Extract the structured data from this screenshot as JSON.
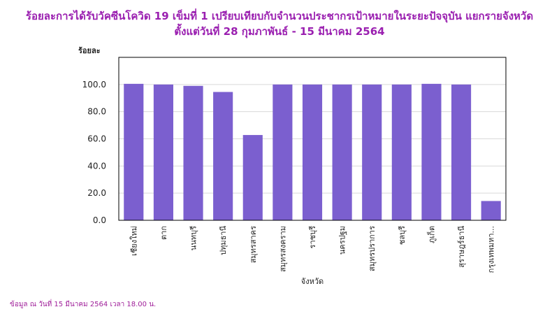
{
  "title_line1": "ร้อยละการได้รับวัคซีนโควิด 19 เข็มที่ 1 เปรียบเทียบกับจำนวนประชากรเป้าหมายในระยะปัจจุบัน แยกรายจังหวัด",
  "title_line2": "ตั้งแต่วันที่ 28 กุมภาพันธ์ - 15 มีนาคม 2564",
  "footnote": "ข้อมูล ณ วันที่ 15 มีนาคม 2564 เวลา 18.00 น.",
  "colors": {
    "bar": "#7b5fcf",
    "title": "#9a1fb0",
    "footnote": "#a0209a"
  },
  "chart_data": {
    "type": "bar",
    "unit_label": "ร้อยละ",
    "xlabel": "จังหวัด",
    "ylabel": "ร้อยละ",
    "ylim": [
      0,
      120
    ],
    "yticks": [
      "0.0",
      "20.0",
      "40.0",
      "60.0",
      "80.0",
      "100.0"
    ],
    "categories": [
      "เชียงใหม่",
      "ตาก",
      "นนทบุรี",
      "ปทุมธานี",
      "สมุทรสาคร",
      "สมุทรสงคราม",
      "ราชบุรี",
      "นครปฐม",
      "สมุทรปราการ",
      "ชลบุรี",
      "ภูเก็ต",
      "สุราษฎร์ธานี",
      "กรุงเทพมหา..."
    ],
    "values": [
      100.5,
      100.0,
      99.0,
      94.5,
      62.8,
      100.0,
      100.0,
      100.0,
      100.0,
      100.0,
      100.5,
      100.0,
      14.2
    ],
    "grid": true,
    "legend": "none"
  }
}
